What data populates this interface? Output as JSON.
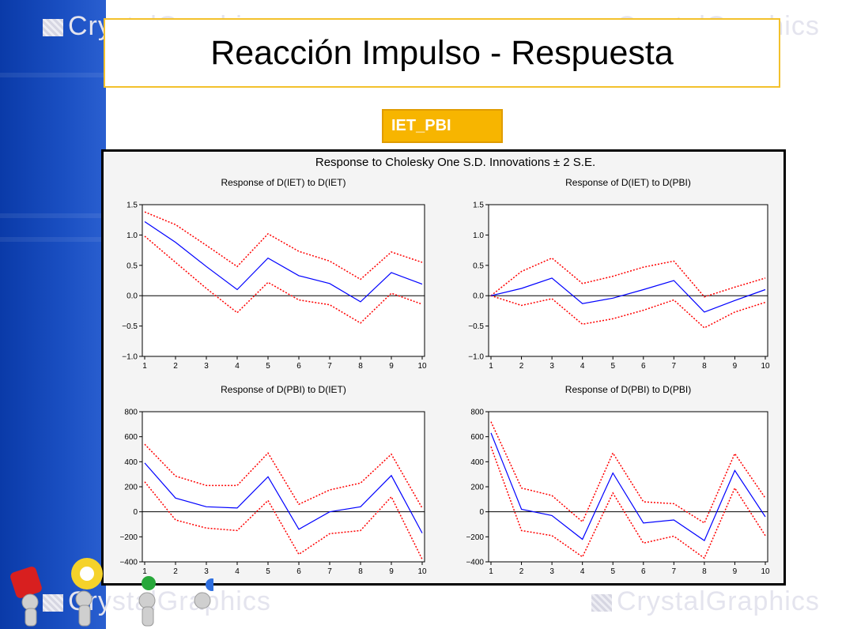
{
  "slide": {
    "title": "Reacción Impulso - Respuesta",
    "variable_label": "IET_PBI",
    "watermark_text": "CrystalGraphics"
  },
  "colors": {
    "sidebar": "#1a4fc2",
    "title_border": "#f3c12c",
    "label_bg": "#f7b500",
    "response_line": "#0000ff",
    "band_line": "#ff0000"
  },
  "chart_data": {
    "type": "line",
    "main_title": "Response to Cholesky One S.D. Innovations ± 2 S.E.",
    "panels": [
      {
        "title": "Response of D(IET) to D(IET)",
        "x": [
          1,
          2,
          3,
          4,
          5,
          6,
          7,
          8,
          9,
          10
        ],
        "ylim": [
          -1.0,
          1.5
        ],
        "yticks": [
          1.5,
          1.0,
          0.5,
          0.0,
          -0.5,
          -1.0
        ],
        "ytick_labels": [
          "1.5",
          "1.0",
          "0.5",
          "0.0",
          "−0.5",
          "−1.0"
        ],
        "response": [
          1.22,
          0.88,
          0.48,
          0.1,
          0.62,
          0.33,
          0.2,
          -0.1,
          0.38,
          0.19
        ],
        "upper": [
          1.38,
          1.17,
          0.83,
          0.48,
          1.02,
          0.73,
          0.57,
          0.27,
          0.72,
          0.55
        ],
        "lower": [
          0.98,
          0.55,
          0.12,
          -0.28,
          0.22,
          -0.07,
          -0.15,
          -0.45,
          0.04,
          -0.14
        ]
      },
      {
        "title": "Response of D(IET) to D(PBI)",
        "x": [
          1,
          2,
          3,
          4,
          5,
          6,
          7,
          8,
          9,
          10
        ],
        "ylim": [
          -1.0,
          1.5
        ],
        "yticks": [
          1.5,
          1.0,
          0.5,
          0.0,
          -0.5,
          -1.0
        ],
        "ytick_labels": [
          "1.5",
          "1.0",
          "0.5",
          "0.0",
          "−0.5",
          "−1.0"
        ],
        "response": [
          0.0,
          0.12,
          0.29,
          -0.13,
          -0.04,
          0.1,
          0.25,
          -0.27,
          -0.08,
          0.1
        ],
        "upper": [
          0.0,
          0.4,
          0.62,
          0.2,
          0.32,
          0.47,
          0.57,
          -0.02,
          0.14,
          0.29
        ],
        "lower": [
          0.0,
          -0.16,
          -0.05,
          -0.47,
          -0.38,
          -0.24,
          -0.07,
          -0.53,
          -0.27,
          -0.11
        ]
      },
      {
        "title": "Response of D(PBI) to D(IET)",
        "x": [
          1,
          2,
          3,
          4,
          5,
          6,
          7,
          8,
          9,
          10
        ],
        "ylim": [
          -400,
          800
        ],
        "yticks": [
          800,
          600,
          400,
          200,
          0,
          -200,
          -400
        ],
        "ytick_labels": [
          "800",
          "600",
          "400",
          "200",
          "0",
          "−200",
          "−400"
        ],
        "response": [
          390,
          110,
          40,
          30,
          280,
          -140,
          0,
          40,
          290,
          -170
        ],
        "upper": [
          540,
          285,
          210,
          210,
          470,
          60,
          175,
          230,
          460,
          30
        ],
        "lower": [
          240,
          -65,
          -130,
          -150,
          90,
          -340,
          -175,
          -150,
          120,
          -380
        ]
      },
      {
        "title": "Response of D(PBI) to D(PBI)",
        "x": [
          1,
          2,
          3,
          4,
          5,
          6,
          7,
          8,
          9,
          10
        ],
        "ylim": [
          -400,
          800
        ],
        "yticks": [
          800,
          600,
          400,
          200,
          0,
          -200,
          -400
        ],
        "ytick_labels": [
          "800",
          "600",
          "400",
          "200",
          "0",
          "−200",
          "−400"
        ],
        "response": [
          630,
          20,
          -30,
          -220,
          310,
          -90,
          -65,
          -230,
          330,
          -40
        ],
        "upper": [
          720,
          190,
          130,
          -80,
          470,
          80,
          65,
          -90,
          465,
          110
        ],
        "lower": [
          520,
          -150,
          -190,
          -360,
          150,
          -250,
          -195,
          -370,
          190,
          -190
        ]
      }
    ],
    "legend": "none",
    "grid": false
  }
}
